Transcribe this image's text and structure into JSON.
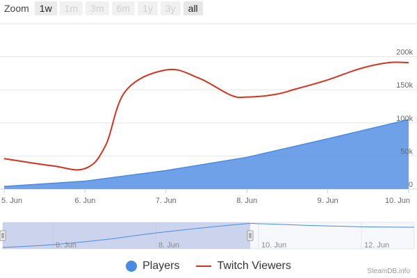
{
  "zoom": {
    "label": "Zoom",
    "buttons": [
      {
        "label": "1w",
        "enabled": true,
        "active": false
      },
      {
        "label": "1m",
        "enabled": false,
        "active": false
      },
      {
        "label": "3m",
        "enabled": false,
        "active": false
      },
      {
        "label": "6m",
        "enabled": false,
        "active": false
      },
      {
        "label": "1y",
        "enabled": false,
        "active": false
      },
      {
        "label": "3y",
        "enabled": false,
        "active": false
      },
      {
        "label": "all",
        "enabled": true,
        "active": true
      }
    ]
  },
  "chart_data": {
    "type": "area",
    "x_ticks": [
      "5. Jun",
      "6. Jun",
      "7. Jun",
      "8. Jun",
      "9. Jun",
      "10. Jun"
    ],
    "y_ticks": [
      "0",
      "50k",
      "100k",
      "150k",
      "200k"
    ],
    "ylim": [
      0,
      250000
    ],
    "grid": true,
    "series": [
      {
        "name": "Players",
        "kind": "area",
        "color": "#4a8ae2",
        "x": [
          0,
          1,
          2,
          3,
          4,
          5
        ],
        "values": [
          4000,
          12000,
          28000,
          48000,
          76000,
          105000
        ]
      },
      {
        "name": "Twitch Viewers",
        "kind": "spline",
        "color": "#d6321b",
        "x": [
          0,
          0.6,
          1,
          1.25,
          1.5,
          2,
          2.4,
          2.8,
          3,
          3.35,
          3.6,
          4,
          4.4,
          4.75,
          5
        ],
        "values": [
          46000,
          35000,
          31000,
          65000,
          148000,
          180000,
          168000,
          142000,
          139000,
          143000,
          151000,
          165000,
          182000,
          191000,
          191000
        ]
      }
    ],
    "navigator": {
      "x_ticks": [
        "6. Jun",
        "8. Jun",
        "10. Jun",
        "12. Jun"
      ],
      "x_tick_dates": [
        1,
        3,
        5,
        7
      ],
      "xlim": [
        0,
        8
      ],
      "selection": [
        0,
        5
      ],
      "line": {
        "x": [
          0,
          1,
          2,
          3,
          4.6,
          5,
          5.5,
          6,
          7,
          8
        ],
        "values": [
          0.05,
          0.17,
          0.37,
          0.64,
          0.98,
          1.0,
          0.97,
          0.93,
          0.88,
          0.86
        ]
      }
    },
    "legend_placement": "bottom"
  },
  "legend": [
    {
      "name": "Players",
      "color": "#4a8ae2",
      "marker": "circle"
    },
    {
      "name": "Twitch Viewers",
      "color": "#d6321b",
      "marker": "line"
    }
  ],
  "credit": "SteamDB.info"
}
